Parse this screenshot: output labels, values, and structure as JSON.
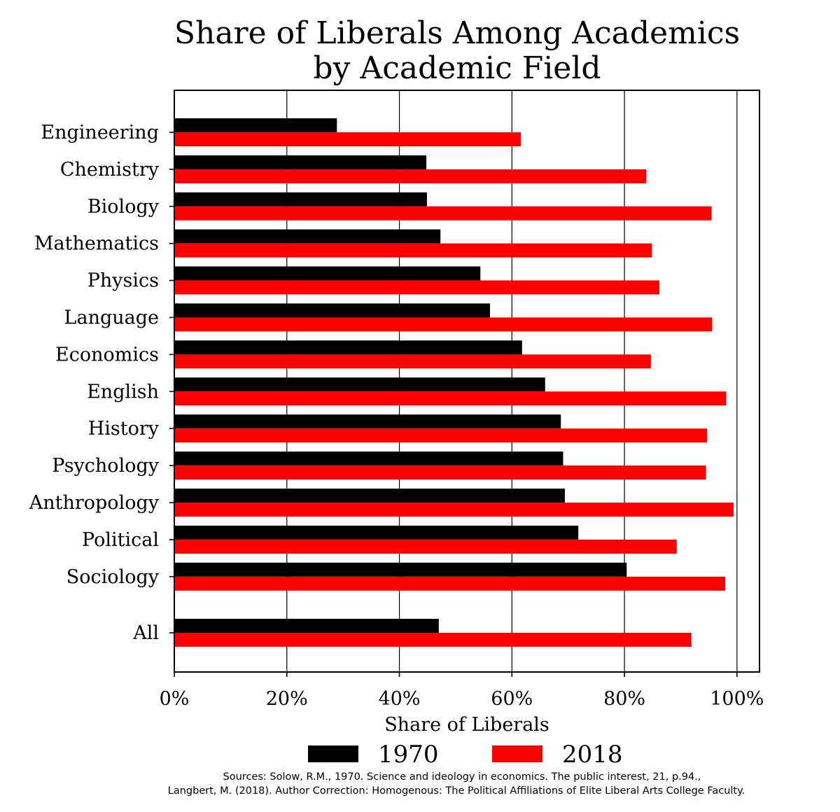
{
  "chart_data": {
    "type": "bar",
    "orientation": "horizontal",
    "title": [
      "Share of Liberals Among Academics",
      "by Academic Field"
    ],
    "xlabel": "Share of Liberals",
    "ylabel": "",
    "xlim": [
      0,
      104
    ],
    "xticks": [
      0,
      20,
      40,
      60,
      80,
      100
    ],
    "xtick_labels": [
      "0%",
      "20%",
      "40%",
      "60%",
      "80%",
      "100%"
    ],
    "grid": "vertical",
    "categories": [
      "Engineering",
      "Chemistry",
      "Biology",
      "Mathematics",
      "Physics",
      "Language",
      "Economics",
      "English",
      "History",
      "Psychology",
      "Anthropology",
      "Political",
      "Sociology",
      "All"
    ],
    "series": [
      {
        "name": "1970",
        "color": "#000000",
        "values": [
          28.9,
          44.8,
          44.9,
          47.3,
          54.4,
          56.1,
          61.8,
          65.9,
          68.7,
          69.1,
          69.4,
          71.8,
          80.4,
          47.0
        ]
      },
      {
        "name": "2018",
        "color": "#ff0000",
        "values": [
          61.6,
          83.9,
          95.5,
          84.9,
          86.2,
          95.6,
          84.7,
          98.1,
          94.7,
          94.5,
          99.4,
          89.3,
          97.9,
          91.9
        ]
      }
    ],
    "legend": "bottom-center"
  },
  "sources": [
    "Sources: Solow, R.M., 1970. Science and ideology in economics. The public interest, 21, p.94.,",
    "Langbert, M. (2018). Author Correction: Homogenous: The Political Affiliations of Elite Liberal Arts College Faculty."
  ]
}
